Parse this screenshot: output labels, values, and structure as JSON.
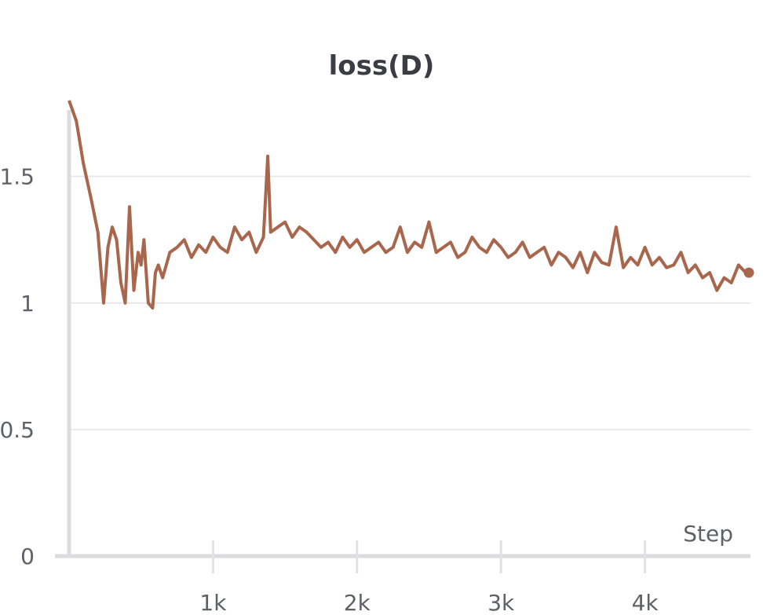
{
  "chart_data": {
    "type": "line",
    "title": "loss(D)",
    "xlabel": "Step",
    "ylabel": "",
    "xlim": [
      0,
      4700
    ],
    "ylim": [
      0,
      1.8
    ],
    "x_ticks": [
      {
        "value": 1000,
        "label": "1k"
      },
      {
        "value": 2000,
        "label": "2k"
      },
      {
        "value": 3000,
        "label": "3k"
      },
      {
        "value": 4000,
        "label": "4k"
      }
    ],
    "y_ticks": [
      {
        "value": 0,
        "label": "0"
      },
      {
        "value": 0.5,
        "label": "0.5"
      },
      {
        "value": 1,
        "label": "1"
      },
      {
        "value": 1.5,
        "label": "1.5"
      }
    ],
    "grid": true,
    "legend": "none",
    "series": [
      {
        "color": "#a8664d",
        "x": [
          0,
          50,
          100,
          150,
          200,
          240,
          270,
          300,
          330,
          360,
          390,
          420,
          450,
          480,
          500,
          520,
          550,
          580,
          600,
          620,
          650,
          700,
          750,
          800,
          850,
          900,
          950,
          1000,
          1050,
          1100,
          1150,
          1200,
          1250,
          1300,
          1350,
          1380,
          1400,
          1450,
          1500,
          1550,
          1600,
          1650,
          1700,
          1750,
          1800,
          1850,
          1900,
          1950,
          2000,
          2050,
          2100,
          2150,
          2200,
          2250,
          2300,
          2350,
          2400,
          2450,
          2500,
          2550,
          2600,
          2650,
          2700,
          2750,
          2800,
          2850,
          2900,
          2950,
          3000,
          3050,
          3100,
          3150,
          3200,
          3250,
          3300,
          3350,
          3400,
          3450,
          3500,
          3550,
          3600,
          3650,
          3700,
          3750,
          3800,
          3850,
          3900,
          3950,
          4000,
          4050,
          4100,
          4150,
          4200,
          4250,
          4300,
          4350,
          4400,
          4450,
          4500,
          4550,
          4600,
          4650,
          4700
        ],
        "y": [
          1.8,
          1.72,
          1.55,
          1.42,
          1.28,
          1.0,
          1.22,
          1.3,
          1.25,
          1.08,
          1.0,
          1.38,
          1.05,
          1.2,
          1.15,
          1.25,
          1.0,
          0.98,
          1.12,
          1.15,
          1.1,
          1.2,
          1.22,
          1.25,
          1.18,
          1.23,
          1.2,
          1.26,
          1.22,
          1.2,
          1.3,
          1.25,
          1.28,
          1.2,
          1.26,
          1.58,
          1.28,
          1.3,
          1.32,
          1.26,
          1.3,
          1.28,
          1.25,
          1.22,
          1.24,
          1.2,
          1.26,
          1.22,
          1.25,
          1.2,
          1.22,
          1.24,
          1.2,
          1.22,
          1.3,
          1.2,
          1.24,
          1.22,
          1.32,
          1.2,
          1.22,
          1.24,
          1.18,
          1.2,
          1.26,
          1.22,
          1.2,
          1.25,
          1.22,
          1.18,
          1.2,
          1.24,
          1.18,
          1.2,
          1.22,
          1.15,
          1.2,
          1.18,
          1.14,
          1.2,
          1.12,
          1.2,
          1.16,
          1.15,
          1.3,
          1.14,
          1.18,
          1.15,
          1.22,
          1.15,
          1.18,
          1.14,
          1.15,
          1.2,
          1.12,
          1.15,
          1.1,
          1.12,
          1.05,
          1.1,
          1.08,
          1.15,
          1.12
        ]
      }
    ]
  }
}
